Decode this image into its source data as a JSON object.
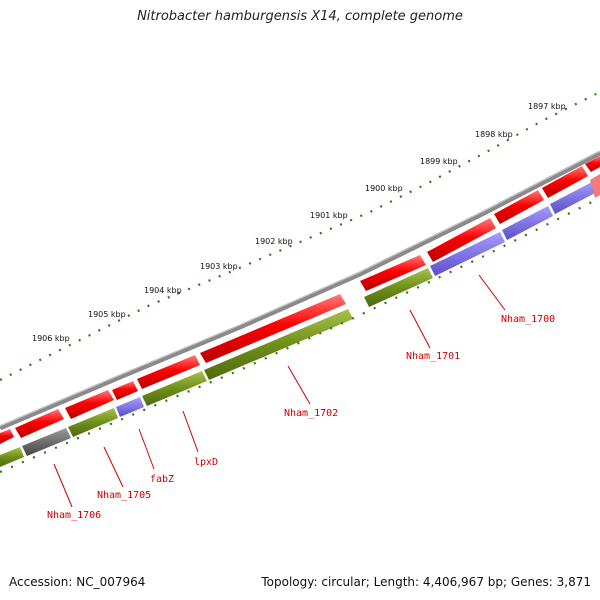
{
  "title": "Nitrobacter hamburgensis X14, complete genome",
  "footer": {
    "accession": "Accession: NC_007964",
    "topology": "Topology: circular; Length: 4,406,967 bp; Genes: 3,871"
  },
  "scale": {
    "unit": "kbp",
    "ticks": [
      "1906 kbp",
      "1905 kbp",
      "1904 kbp",
      "1903 kbp",
      "1902 kbp",
      "1901 kbp",
      "1900 kbp",
      "1899 kbp",
      "1898 kbp",
      "1897 kbp"
    ]
  },
  "colors": {
    "backbone": "#8a8a8a",
    "forward_gene": "#ee0000",
    "cds_green": "#6f8f1a",
    "cds_blue": "#6a5fd6",
    "cds_gray": "#555555",
    "cds_pink": "#f07c7c",
    "label": "#cc0000",
    "tick": "#2a7a1a"
  },
  "gene_labels": [
    "Nham_1706",
    "Nham_1705",
    "fabZ",
    "lpxD",
    "Nham_1702",
    "Nham_1701",
    "Nham_1700"
  ]
}
